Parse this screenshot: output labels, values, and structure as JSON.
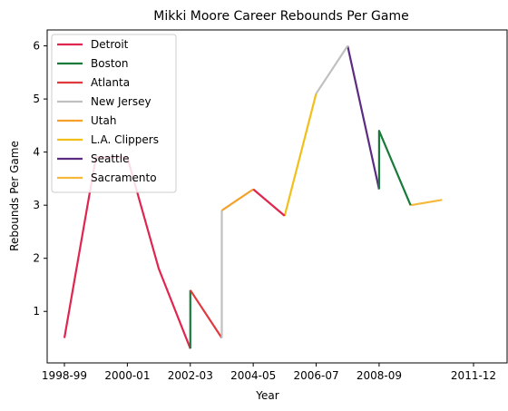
{
  "chart_data": {
    "type": "line",
    "title": "Mikki Moore Career Rebounds Per Game",
    "xlabel": "Year",
    "ylabel": "Rebounds Per Game",
    "x_categories": [
      "1998-99",
      "1999-00",
      "2000-01",
      "2001-02",
      "2002-03",
      "2003-04",
      "2004-05",
      "2005-06",
      "2006-07",
      "2007-08",
      "2008-09",
      "2009-10",
      "2010-11",
      "2011-12"
    ],
    "x_tick_labels": [
      "1998-99",
      "2000-01",
      "2002-03",
      "2004-05",
      "2006-07",
      "2008-09",
      "2011-12"
    ],
    "yticks": [
      1,
      2,
      3,
      4,
      5,
      6
    ],
    "ylim": [
      0.03,
      6.3
    ],
    "legend_position": "upper-left",
    "series": [
      {
        "name": "Detroit",
        "color": "#e0254f",
        "points": [
          [
            "1998-99",
            0.5
          ],
          [
            "1999-00",
            3.9
          ],
          [
            "2000-01",
            3.9
          ],
          [
            "2001-02",
            1.8
          ],
          [
            "2002-03",
            0.3
          ]
        ]
      },
      {
        "name": "Boston",
        "color": "#1a7a3a",
        "points": [
          [
            "2002-03",
            0.3
          ],
          [
            "2002-03",
            1.4
          ]
        ]
      },
      {
        "name": "Atlanta",
        "color": "#e03a3e",
        "points": [
          [
            "2002-03",
            1.4
          ],
          [
            "2003-04",
            0.5
          ]
        ]
      },
      {
        "name": "New Jersey",
        "color": "#c0c0c0",
        "points": [
          [
            "2003-04",
            0.5
          ],
          [
            "2003-04",
            2.9
          ]
        ]
      },
      {
        "name": "Utah",
        "color": "#f5a02a",
        "points": [
          [
            "2003-04",
            2.9
          ],
          [
            "2004-05",
            3.3
          ]
        ]
      },
      {
        "name": "L.A. Clippers",
        "color": "#f2bf1a",
        "points": [
          [
            "2005-06",
            2.8
          ],
          [
            "2006-07",
            5.1
          ]
        ]
      },
      {
        "name": "Seattle",
        "color": "#5b2c82",
        "points": [
          [
            "2007-08",
            6.0
          ],
          [
            "2008-09",
            3.3
          ]
        ]
      },
      {
        "name": "Sacramento",
        "color": "#f5b83a",
        "points": [
          [
            "2009-10",
            3.0
          ],
          [
            "2010-11",
            3.1
          ]
        ]
      }
    ],
    "extra_segments": [
      {
        "color": "#e0254f",
        "points": [
          [
            "2004-05",
            3.3
          ],
          [
            "2005-06",
            2.8
          ]
        ]
      },
      {
        "color": "#c0c0c0",
        "points": [
          [
            "2006-07",
            5.1
          ],
          [
            "2007-08",
            6.0
          ]
        ]
      },
      {
        "color": "#1a7a3a",
        "points": [
          [
            "2008-09",
            3.3
          ],
          [
            "2008-09",
            4.4
          ],
          [
            "2009-10",
            3.0
          ]
        ]
      }
    ]
  }
}
